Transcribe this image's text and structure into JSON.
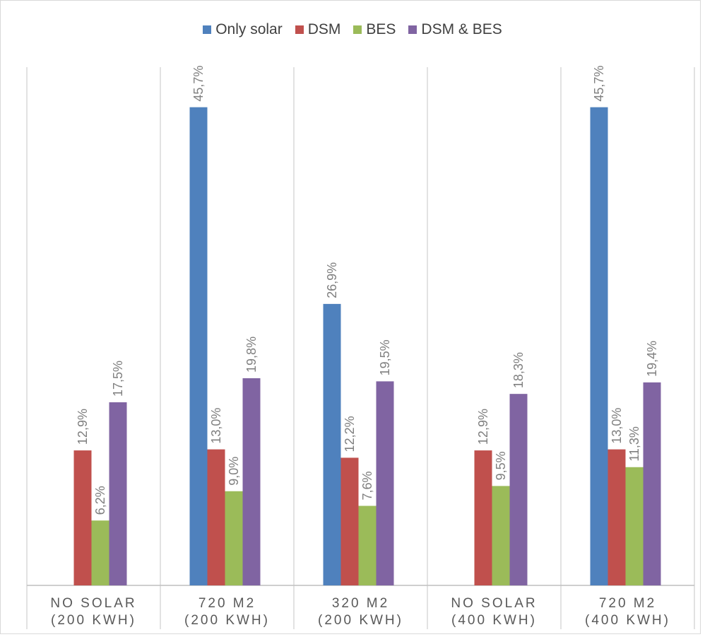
{
  "chart_data": {
    "type": "bar",
    "categories": [
      [
        "NO SOLAR",
        "(200 KWH)"
      ],
      [
        "720 M2",
        "(200 KWH)"
      ],
      [
        "320 M2",
        "(200 KWH)"
      ],
      [
        "NO SOLAR",
        "(400 KWH)"
      ],
      [
        "720 M2",
        "(400 KWH)"
      ]
    ],
    "series": [
      {
        "name": "Only solar",
        "color": "#4F81BD",
        "values": [
          null,
          45.7,
          26.9,
          null,
          45.7
        ],
        "labels": [
          null,
          "45,7%",
          "26,9%",
          null,
          "45,7%"
        ]
      },
      {
        "name": "DSM",
        "color": "#C0504D",
        "values": [
          12.9,
          13.0,
          12.2,
          12.9,
          13.0
        ],
        "labels": [
          "12,9%",
          "13,0%",
          "12,2%",
          "12,9%",
          "13,0%"
        ]
      },
      {
        "name": "BES",
        "color": "#9BBB59",
        "values": [
          6.2,
          9.0,
          7.6,
          9.5,
          11.3
        ],
        "labels": [
          "6,2%",
          "9,0%",
          "7,6%",
          "9,5%",
          "11,3%"
        ]
      },
      {
        "name": "DSM & BES",
        "color": "#8064A2",
        "values": [
          17.5,
          19.8,
          19.5,
          18.3,
          19.4
        ],
        "labels": [
          "17,5%",
          "19,8%",
          "19,5%",
          "18,3%",
          "19,4%"
        ]
      }
    ],
    "ylim": [
      0,
      50
    ],
    "grid": false,
    "legend": "top-center",
    "title": "",
    "xlabel": "",
    "ylabel": ""
  }
}
